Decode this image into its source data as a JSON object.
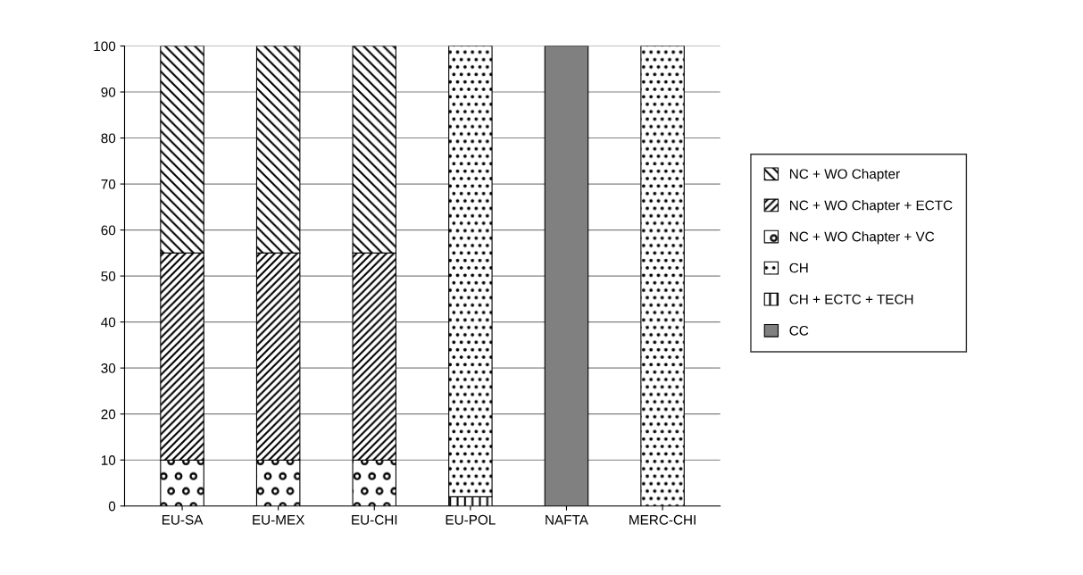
{
  "chart_data": {
    "type": "bar",
    "stacked": true,
    "categories": [
      "EU-SA",
      "EU-MEX",
      "EU-CHI",
      "EU-POL",
      "NAFTA",
      "MERC-CHI"
    ],
    "series": [
      {
        "name": "CC",
        "color": "#808080",
        "values": [
          null,
          null,
          null,
          null,
          100,
          null
        ]
      },
      {
        "name": "CH + ECTC + TECH",
        "color": "#000000",
        "values": [
          null,
          null,
          null,
          2,
          null,
          null
        ]
      },
      {
        "name": "CH",
        "color": "#000000",
        "values": [
          null,
          null,
          null,
          98,
          null,
          100
        ]
      },
      {
        "name": "NC + WO Chapter + VC",
        "color": "#000000",
        "values": [
          10,
          10,
          10,
          null,
          null,
          null
        ]
      },
      {
        "name": "NC + WO Chapter + ECTC",
        "color": "#000000",
        "values": [
          45,
          45,
          45,
          null,
          null,
          null
        ]
      },
      {
        "name": "NC + WO Chapter",
        "color": "#000000",
        "values": [
          45,
          45,
          45,
          null,
          null,
          null
        ]
      }
    ],
    "ylim": [
      0,
      100
    ],
    "yticks": [
      0,
      10,
      20,
      30,
      40,
      50,
      60,
      70,
      80,
      90,
      100
    ],
    "grid": "y",
    "legend": "right"
  }
}
